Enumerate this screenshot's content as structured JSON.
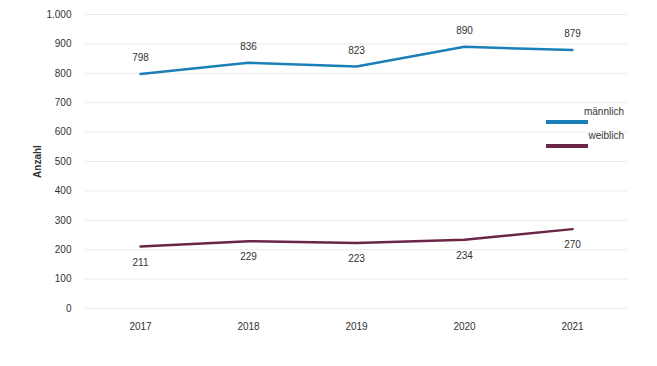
{
  "chart_data": {
    "type": "line",
    "y_label": "Anzahl",
    "categories": [
      "2017",
      "2018",
      "2019",
      "2020",
      "2021"
    ],
    "series": [
      {
        "name": "männlich",
        "color": "#1b80b7",
        "values": [
          798,
          836,
          823,
          890,
          879
        ]
      },
      {
        "name": "weiblich",
        "color": "#6b2646",
        "values": [
          211,
          229,
          223,
          234,
          270
        ]
      }
    ],
    "ylim": [
      0,
      1000
    ],
    "yticks": [
      0,
      100,
      200,
      300,
      400,
      500,
      600,
      700,
      800,
      900,
      {
        "value": 1000,
        "label": "1.000"
      }
    ],
    "grid": true,
    "legend": "right",
    "data_labels": true
  }
}
